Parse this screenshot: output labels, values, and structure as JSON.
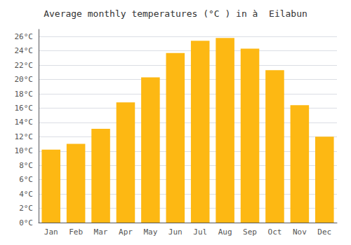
{
  "chart_data": {
    "type": "bar",
    "title": "Average monthly temperatures (°C ) in à  Eilabun",
    "categories": [
      "Jan",
      "Feb",
      "Mar",
      "Apr",
      "May",
      "Jun",
      "Jul",
      "Aug",
      "Sep",
      "Oct",
      "Nov",
      "Dec"
    ],
    "values": [
      10.2,
      11.0,
      13.1,
      16.8,
      20.3,
      23.7,
      25.4,
      25.8,
      24.3,
      21.3,
      16.4,
      12.0
    ],
    "color": "#FDB813",
    "ylim": [
      0,
      27
    ],
    "yticks": [
      {
        "value": 0,
        "label": "0°C"
      },
      {
        "value": 2,
        "label": "2°C"
      },
      {
        "value": 4,
        "label": "4°C"
      },
      {
        "value": 6,
        "label": "6°C"
      },
      {
        "value": 8,
        "label": "8°C"
      },
      {
        "value": 10,
        "label": "10°C"
      },
      {
        "value": 12,
        "label": "12°C"
      },
      {
        "value": 14,
        "label": "14°C"
      },
      {
        "value": 16,
        "label": "16°C"
      },
      {
        "value": 18,
        "label": "18°C"
      },
      {
        "value": 20,
        "label": "20°C"
      },
      {
        "value": 22,
        "label": "22°C"
      },
      {
        "value": 24,
        "label": "24°C"
      },
      {
        "value": 26,
        "label": "26°C"
      }
    ],
    "grid": true
  }
}
